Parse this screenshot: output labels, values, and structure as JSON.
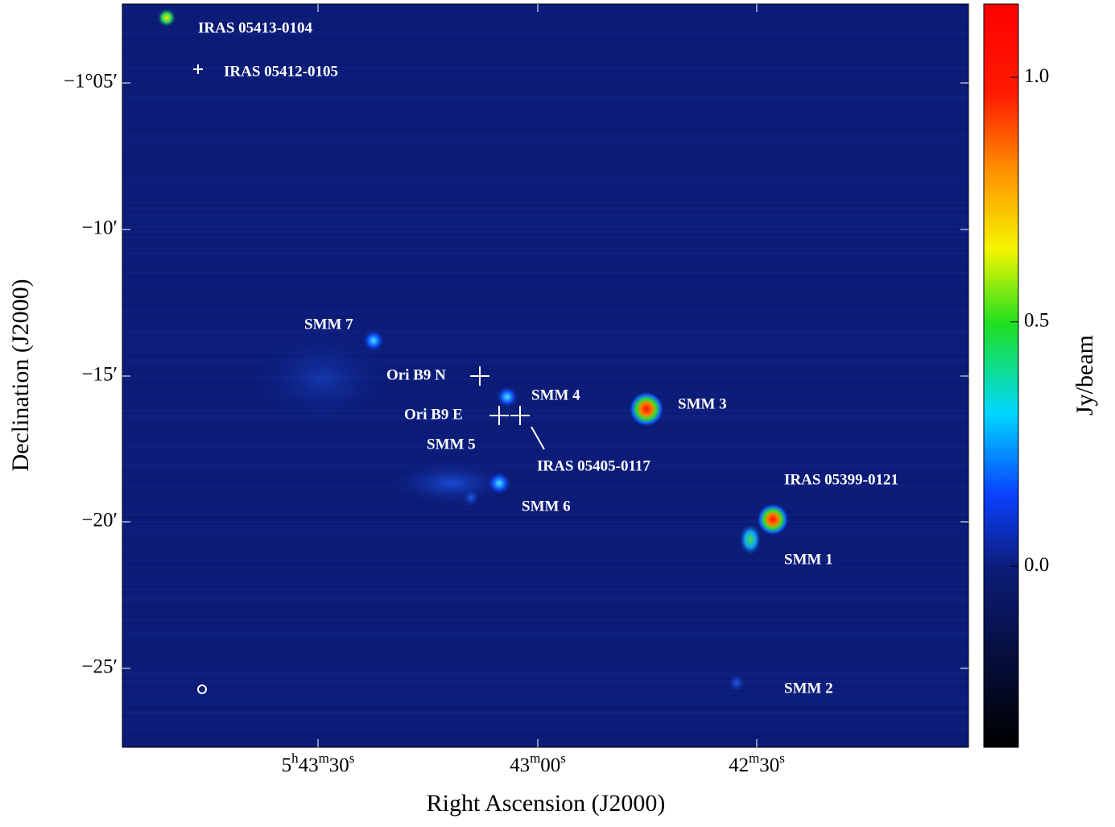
{
  "axes": {
    "x_label": "Right Ascension (J2000)",
    "y_label": "Declination (J2000)",
    "x_ticks": [
      [
        "5",
        "h",
        "43",
        "m",
        "30",
        "s"
      ],
      [
        "43",
        "m",
        "00",
        "s"
      ],
      [
        "42",
        "m",
        "30",
        "s"
      ]
    ],
    "y_ticks": [
      "−1°05′",
      "−10′",
      "−15′",
      "−20′",
      "−25′"
    ]
  },
  "colorbar": {
    "label": "Jy/beam",
    "lim": [
      -0.37,
      1.15
    ],
    "ticks": [
      {
        "value": 1,
        "label": "1.0"
      },
      {
        "value": 0.5,
        "label": "0.5"
      },
      {
        "value": 0,
        "label": "0.0"
      }
    ]
  },
  "sources": [
    "IRAS 05413-0104",
    "IRAS 05412-0105",
    "SMM 7",
    "Ori B9 N",
    "SMM 4",
    "SMM 3",
    "Ori B9 E",
    "SMM 5",
    "IRAS 05405-0117",
    "IRAS 05399-0121",
    "SMM 6",
    "SMM 1",
    "SMM 2"
  ]
}
